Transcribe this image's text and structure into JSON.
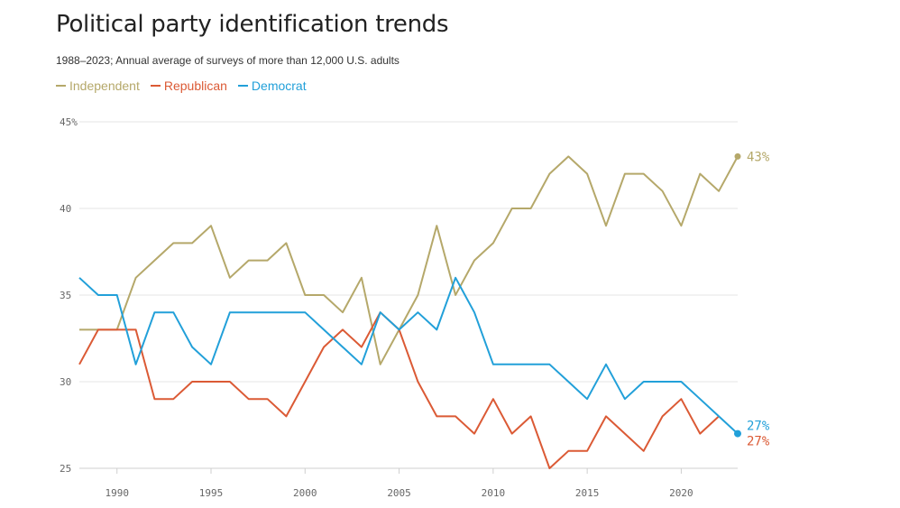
{
  "title": "Political party identification trends",
  "subtitle": "1988–2023; Annual average of surveys of more than 12,000 U.S. adults",
  "chart_data": {
    "type": "line",
    "title": "Political party identification trends",
    "subtitle": "1988–2023; Annual average of surveys of more than 12,000 U.S. adults",
    "xlabel": "",
    "ylabel": "",
    "xlim": [
      1988,
      2023
    ],
    "ylim": [
      25,
      45
    ],
    "x_ticks": [
      1990,
      1995,
      2000,
      2005,
      2010,
      2015,
      2020
    ],
    "y_ticks": [
      25,
      30,
      35,
      40,
      45
    ],
    "y_tick_labels": [
      "25",
      "30",
      "35",
      "40",
      "45%"
    ],
    "grid": "horizontal",
    "legend": "top-left",
    "x": [
      1988,
      1989,
      1990,
      1991,
      1992,
      1993,
      1994,
      1995,
      1996,
      1997,
      1998,
      1999,
      2000,
      2001,
      2002,
      2003,
      2004,
      2005,
      2006,
      2007,
      2008,
      2009,
      2010,
      2011,
      2012,
      2013,
      2014,
      2015,
      2016,
      2017,
      2018,
      2019,
      2020,
      2021,
      2022,
      2023
    ],
    "series": [
      {
        "name": "Independent",
        "color": "#b5a86a",
        "end_label": "43%",
        "values": [
          33,
          33,
          33,
          36,
          37,
          38,
          38,
          39,
          36,
          37,
          37,
          38,
          35,
          35,
          34,
          36,
          31,
          33,
          35,
          39,
          35,
          37,
          38,
          40,
          40,
          42,
          43,
          42,
          39,
          42,
          42,
          41,
          39,
          42,
          41,
          43
        ]
      },
      {
        "name": "Republican",
        "color": "#db5a35",
        "end_label": "27%",
        "values": [
          31,
          33,
          33,
          33,
          29,
          29,
          30,
          30,
          30,
          29,
          29,
          28,
          30,
          32,
          33,
          32,
          34,
          33,
          30,
          28,
          28,
          27,
          29,
          27,
          28,
          25,
          26,
          26,
          28,
          27,
          26,
          28,
          29,
          27,
          28,
          null
        ]
      },
      {
        "name": "Democrat",
        "color": "#22a0d9",
        "end_label": "27%",
        "values": [
          36,
          35,
          35,
          31,
          34,
          34,
          32,
          31,
          34,
          34,
          34,
          34,
          34,
          33,
          32,
          31,
          34,
          33,
          34,
          33,
          36,
          34,
          31,
          31,
          31,
          31,
          30,
          29,
          31,
          29,
          30,
          30,
          30,
          29,
          28,
          27
        ]
      }
    ]
  }
}
